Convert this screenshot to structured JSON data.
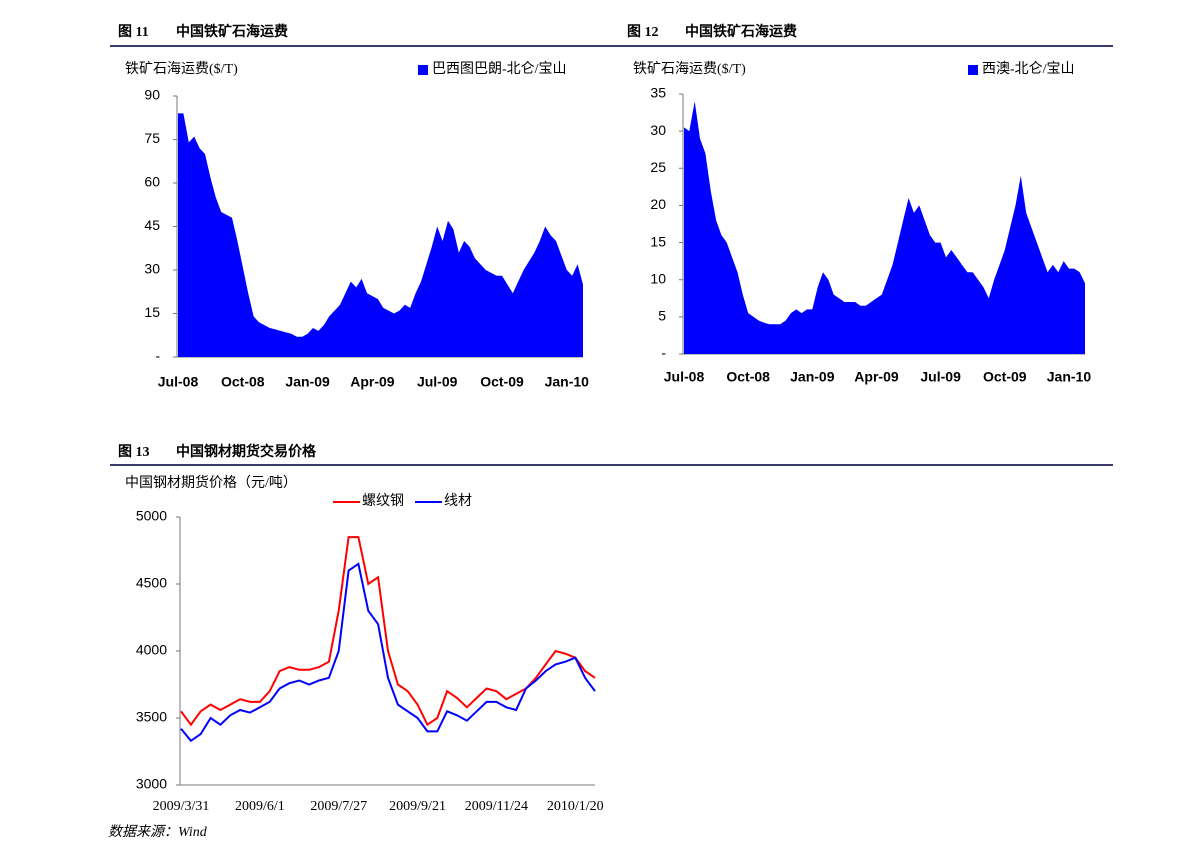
{
  "chart_data": [
    {
      "type": "area",
      "figure_label": "图 11",
      "title": "中国铁矿石海运费",
      "y_label": "铁矿石海运费($/T)",
      "categories": [
        "Jul-08",
        null,
        null,
        null,
        null,
        null,
        null,
        null,
        null,
        null,
        null,
        null,
        "Oct-08",
        null,
        null,
        null,
        null,
        null,
        null,
        null,
        null,
        null,
        null,
        null,
        "Jan-09",
        null,
        null,
        null,
        null,
        null,
        null,
        null,
        null,
        null,
        null,
        null,
        "Apr-09",
        null,
        null,
        null,
        null,
        null,
        null,
        null,
        null,
        null,
        null,
        null,
        "Jul-09",
        null,
        null,
        null,
        null,
        null,
        null,
        null,
        null,
        null,
        null,
        null,
        "Oct-09",
        null,
        null,
        null,
        null,
        null,
        null,
        null,
        null,
        null,
        null,
        null,
        "Jan-10",
        null,
        null,
        null
      ],
      "series": [
        {
          "name": "巴西图巴朗-北仑/宝山",
          "color": "#0000ff",
          "values": [
            84,
            84,
            74,
            76,
            72,
            70,
            62,
            55,
            50,
            49,
            48,
            40,
            31,
            22,
            14,
            12,
            11,
            10,
            9.5,
            9,
            8.5,
            8,
            7,
            7,
            8,
            10,
            9,
            11,
            14,
            16,
            18,
            22,
            26,
            24,
            27,
            22,
            21,
            20,
            17,
            16,
            15,
            16,
            18,
            17,
            22,
            26,
            32,
            38,
            45,
            40,
            47,
            44,
            36,
            40,
            38,
            34,
            32,
            30,
            29,
            28,
            28,
            25,
            22,
            26,
            30,
            33,
            36,
            40,
            45,
            42,
            40,
            35,
            30,
            28,
            32,
            25
          ]
        }
      ],
      "ylim": [
        0,
        90
      ],
      "yticks": [
        {
          "value": 0,
          "label": "-"
        },
        15,
        30,
        45,
        60,
        75,
        90
      ]
    },
    {
      "type": "area",
      "figure_label": "图 12",
      "title": "中国铁矿石海运费",
      "y_label": "铁矿石海运费($/T)",
      "categories": [
        "Jul-08",
        null,
        null,
        null,
        null,
        null,
        null,
        null,
        null,
        null,
        null,
        null,
        "Oct-08",
        null,
        null,
        null,
        null,
        null,
        null,
        null,
        null,
        null,
        null,
        null,
        "Jan-09",
        null,
        null,
        null,
        null,
        null,
        null,
        null,
        null,
        null,
        null,
        null,
        "Apr-09",
        null,
        null,
        null,
        null,
        null,
        null,
        null,
        null,
        null,
        null,
        null,
        "Jul-09",
        null,
        null,
        null,
        null,
        null,
        null,
        null,
        null,
        null,
        null,
        null,
        "Oct-09",
        null,
        null,
        null,
        null,
        null,
        null,
        null,
        null,
        null,
        null,
        null,
        "Jan-10",
        null,
        null,
        null
      ],
      "series": [
        {
          "name": "西澳-北仑/宝山",
          "color": "#0000ff",
          "values": [
            30.5,
            30,
            34,
            29,
            27,
            22,
            18,
            16,
            15,
            13,
            11,
            8,
            5.5,
            5,
            4.5,
            4.2,
            4,
            4,
            4,
            4.5,
            5.5,
            6,
            5.5,
            6,
            6,
            9,
            11,
            10,
            8,
            7.5,
            7,
            7,
            7,
            6.5,
            6.5,
            7,
            7.5,
            8,
            10,
            12,
            15,
            18,
            21,
            19,
            20,
            18,
            16,
            15,
            15,
            13,
            14,
            13,
            12,
            11,
            11,
            10,
            9,
            7.5,
            10,
            12,
            14,
            17,
            20,
            24,
            19,
            17,
            15,
            13,
            11,
            12,
            11,
            12.5,
            11.5,
            11.5,
            11,
            9.5
          ]
        }
      ],
      "ylim": [
        0,
        35
      ],
      "yticks": [
        {
          "value": 0,
          "label": "-"
        },
        5,
        10,
        15,
        20,
        25,
        30,
        35
      ]
    },
    {
      "type": "line",
      "figure_label": "图 13",
      "title": "中国钢材期货交易价格",
      "y_label": "中国钢材期货价格（元/吨）",
      "categories": [
        "2009/3/31",
        null,
        null,
        null,
        null,
        null,
        null,
        null,
        "2009/6/1",
        null,
        null,
        null,
        null,
        null,
        null,
        null,
        "2009/7/27",
        null,
        null,
        null,
        null,
        null,
        null,
        null,
        "2009/9/21",
        null,
        null,
        null,
        null,
        null,
        null,
        null,
        "2009/11/24",
        null,
        null,
        null,
        null,
        null,
        null,
        null,
        "2010/1/20",
        null,
        null
      ],
      "series": [
        {
          "name": "螺纹钢",
          "color": "#ff0000",
          "values": [
            3550,
            3450,
            3550,
            3600,
            3560,
            3600,
            3640,
            3620,
            3620,
            3700,
            3850,
            3880,
            3860,
            3860,
            3880,
            3920,
            4300,
            4850,
            4850,
            4500,
            4550,
            4000,
            3750,
            3700,
            3600,
            3450,
            3500,
            3700,
            3650,
            3580,
            3650,
            3720,
            3700,
            3640,
            3680,
            3720,
            3800,
            3900,
            4000,
            3980,
            3950,
            3850,
            3800
          ]
        },
        {
          "name": "线材",
          "color": "#0000ff",
          "values": [
            3420,
            3330,
            3380,
            3500,
            3450,
            3520,
            3560,
            3540,
            3580,
            3620,
            3720,
            3760,
            3780,
            3750,
            3780,
            3800,
            4000,
            4600,
            4650,
            4300,
            4200,
            3800,
            3600,
            3550,
            3500,
            3400,
            3400,
            3550,
            3520,
            3480,
            3550,
            3620,
            3620,
            3580,
            3560,
            3720,
            3780,
            3850,
            3900,
            3920,
            3950,
            3800,
            3700
          ]
        }
      ],
      "ylim": [
        3000,
        5000
      ],
      "yticks": [
        3000,
        3500,
        4000,
        4500,
        5000
      ]
    }
  ],
  "source": "数据来源：Wind"
}
